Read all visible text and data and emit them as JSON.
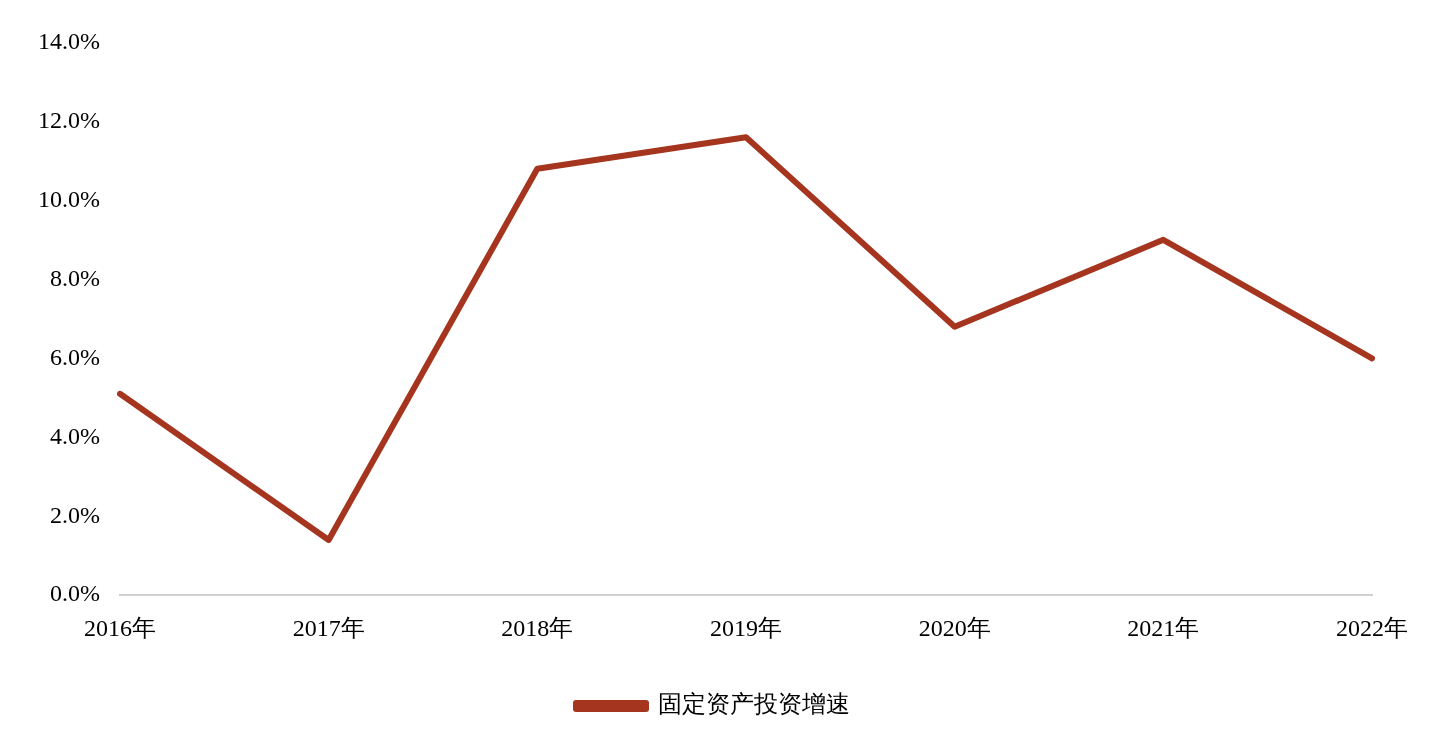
{
  "chart_data": {
    "type": "line",
    "categories": [
      "2016年",
      "2017年",
      "2018年",
      "2019年",
      "2020年",
      "2021年",
      "2022年"
    ],
    "series": [
      {
        "name": "固定资产投资增速",
        "color": "#a5351f",
        "values": [
          5.1,
          1.4,
          10.8,
          11.6,
          6.8,
          9.0,
          6.0
        ]
      }
    ],
    "ylim": [
      0,
      14
    ],
    "yticks": [
      {
        "value": 0,
        "label": "0.0%"
      },
      {
        "value": 2,
        "label": "2.0%"
      },
      {
        "value": 4,
        "label": "4.0%"
      },
      {
        "value": 6,
        "label": "6.0%"
      },
      {
        "value": 8,
        "label": "8.0%"
      },
      {
        "value": 10,
        "label": "10.0%"
      },
      {
        "value": 12,
        "label": "12.0%"
      },
      {
        "value": 14,
        "label": "14.0%"
      }
    ],
    "grid": false,
    "legend": "bottom",
    "marker": "none",
    "line_style": "solid"
  }
}
